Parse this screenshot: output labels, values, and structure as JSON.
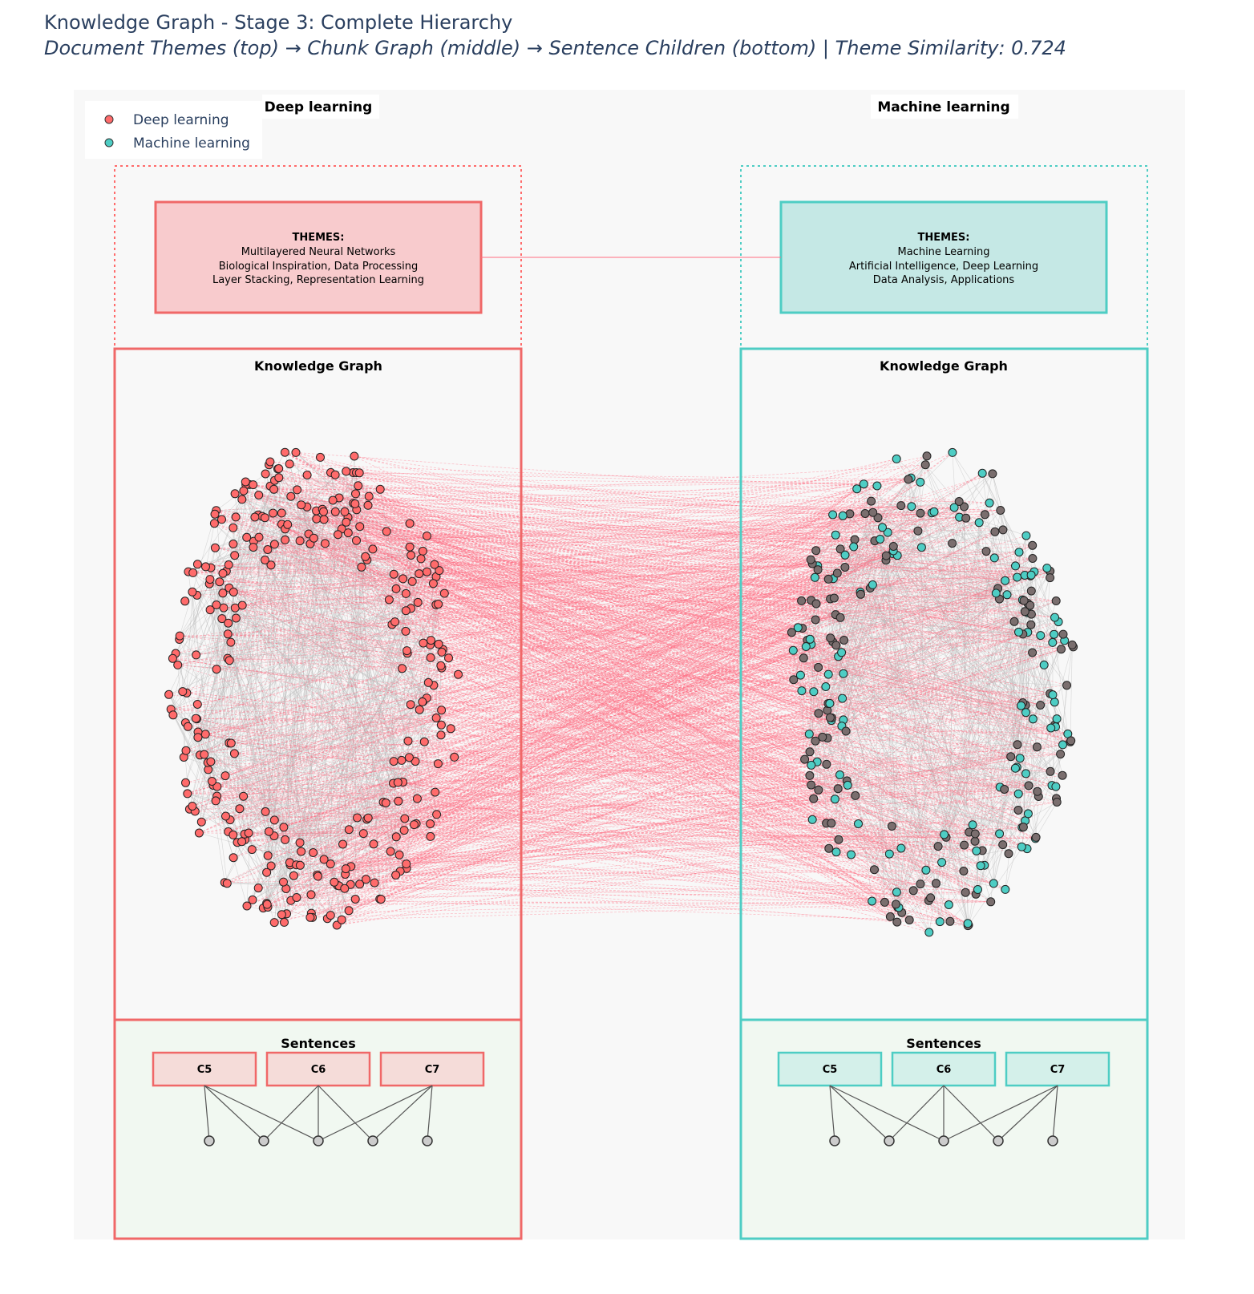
{
  "title": "Knowledge Graph - Stage 3: Complete Hierarchy",
  "subtitle": "Document Themes (top) → Chunk Graph (middle) → Sentence Children (bottom) | Theme Similarity: 0.724",
  "colors": {
    "deep": "#ff6b6b",
    "machine": "#4ecdc4",
    "cross_edge": "#ff6b81",
    "intra_edge": "#bbbbbb",
    "plot_bg": "#f8f8f8"
  },
  "legend": [
    {
      "name": "Deep learning",
      "color": "#ff6b6b"
    },
    {
      "name": "Machine learning",
      "color": "#4ecdc4"
    }
  ],
  "documents": [
    {
      "header": "Deep learning",
      "themes_heading": "THEMES:",
      "themes_lines": [
        "Multilayered Neural Networks",
        "Biological Inspiration, Data Processing",
        "Layer Stacking, Representation Learning"
      ],
      "graph_label": "Knowledge Graph",
      "sentences_label": "Sentences",
      "chunks": [
        "C5",
        "C6",
        "C7"
      ]
    },
    {
      "header": "Machine learning",
      "themes_heading": "THEMES:",
      "themes_lines": [
        "Machine Learning",
        "Artificial Intelligence, Deep Learning",
        "Data Analysis, Applications"
      ],
      "graph_label": "Knowledge Graph",
      "sentences_label": "Sentences",
      "chunks": [
        "C5",
        "C6",
        "C7"
      ]
    }
  ]
}
